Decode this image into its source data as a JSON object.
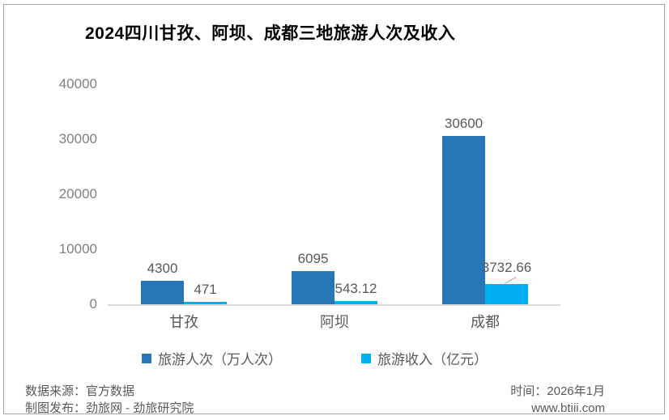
{
  "title": "2024四川甘孜、阿坝、成都三地旅游人次及收入",
  "chart_data": {
    "type": "bar",
    "categories": [
      "甘孜",
      "阿坝",
      "成都"
    ],
    "series": [
      {
        "name": "旅游人次（万人次）",
        "color": "#2777b8",
        "values": [
          4300,
          6095,
          30600
        ],
        "labels": [
          "4300",
          "6095",
          "30600"
        ]
      },
      {
        "name": "旅游收入（亿元）",
        "color": "#00b0f0",
        "values": [
          471,
          543.12,
          3732.66
        ],
        "labels": [
          "471",
          "543.12",
          "3732.66"
        ]
      }
    ],
    "ylim": [
      0,
      40000
    ],
    "yticks": [
      0,
      10000,
      20000,
      30000,
      40000
    ],
    "grid": false,
    "legend_position": "bottom",
    "axis_line_color": "#d9d9d9",
    "tick_label_color": "#7f7f7f",
    "data_label_color": "#595959"
  },
  "footer": {
    "source_line": "数据来源：官方数据",
    "publisher_line": "制图发布：劲旅网 - 劲旅研究院",
    "time_line": "时间：2026年1月",
    "website": "www.btiii.com"
  }
}
